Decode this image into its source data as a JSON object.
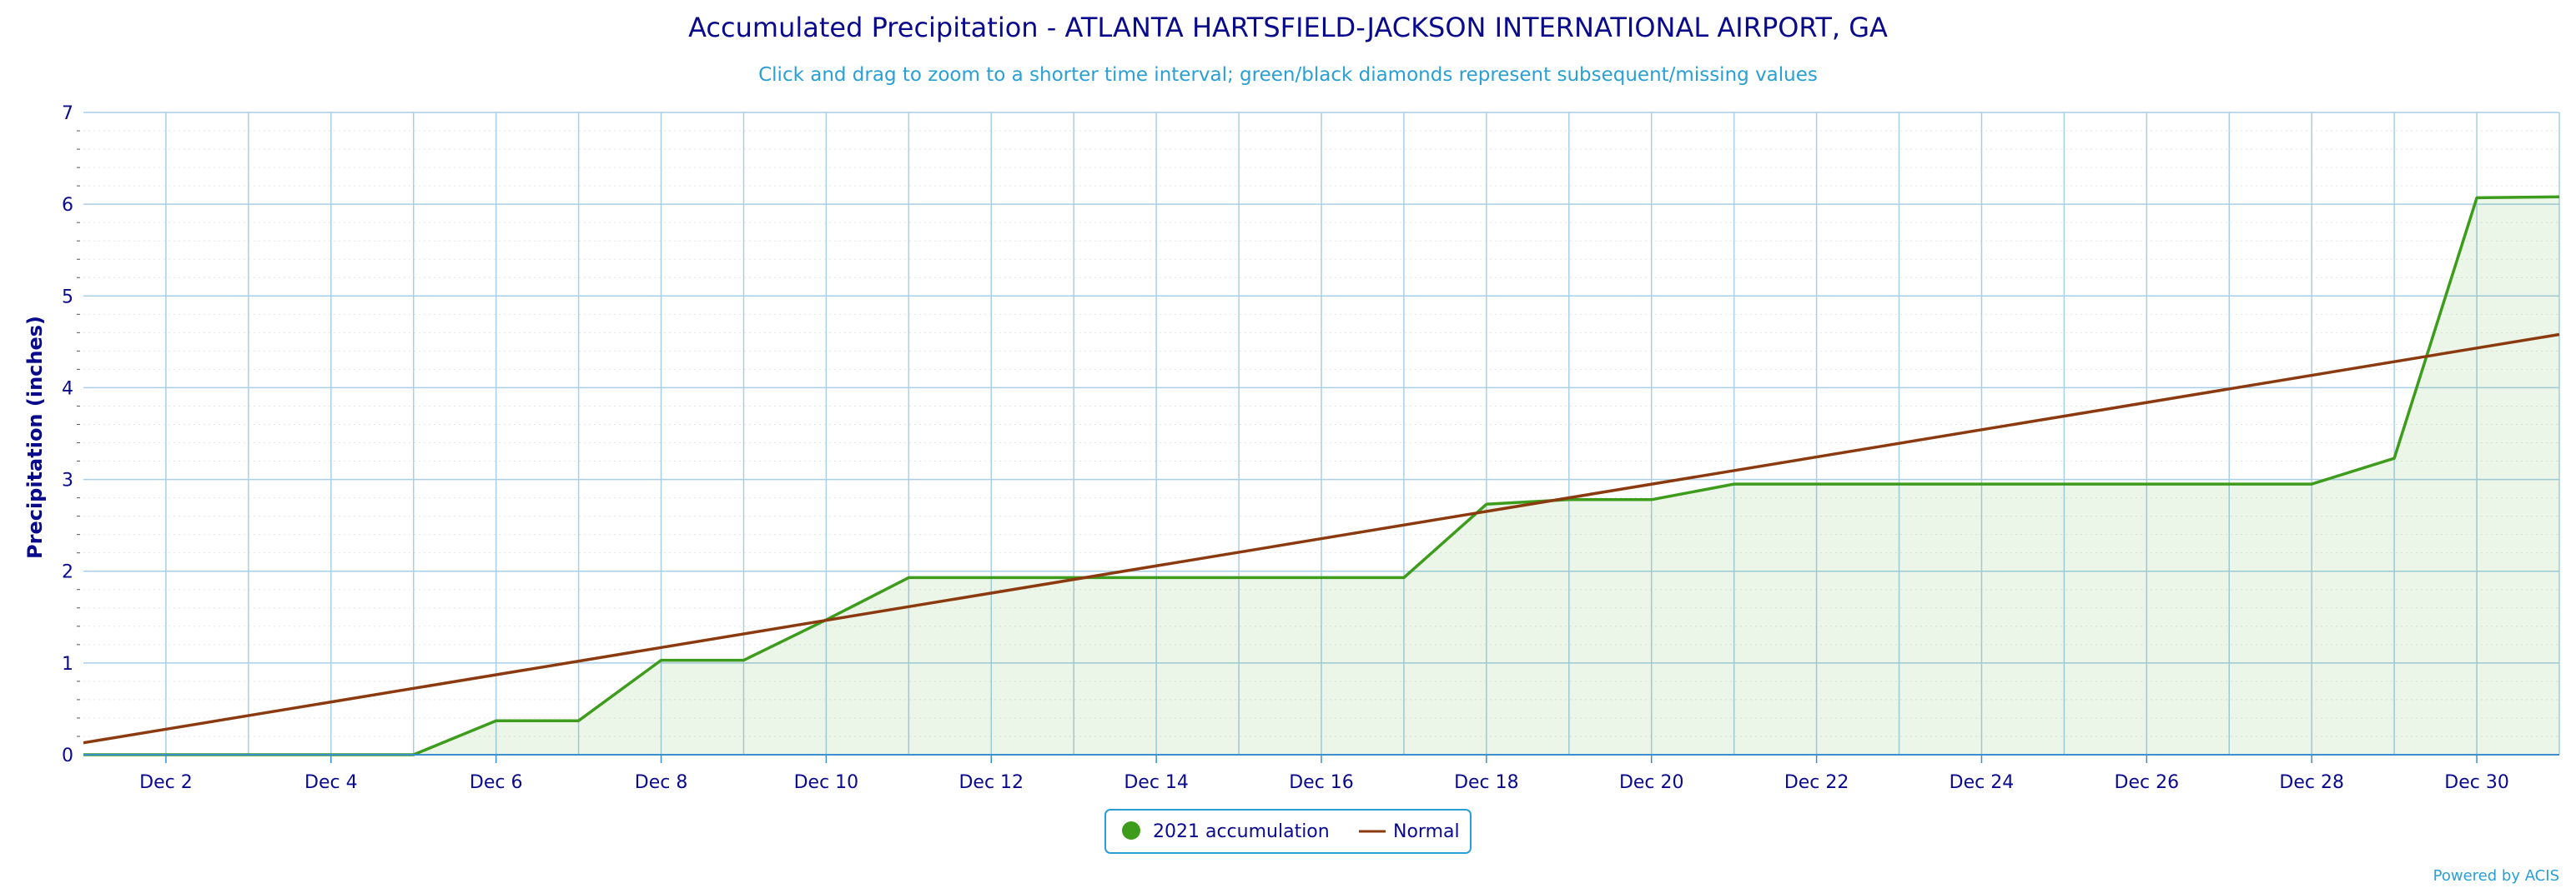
{
  "chart_data": {
    "type": "line",
    "title": "Accumulated Precipitation - ATLANTA HARTSFIELD-JACKSON INTERNATIONAL AIRPORT, GA",
    "subtitle": "Click and drag to zoom to a shorter time interval; green/black diamonds represent subsequent/missing values",
    "ylabel": "Precipitation (inches)",
    "xlabel": "",
    "ylim": [
      0,
      7
    ],
    "xlim": [
      1,
      31
    ],
    "yticks": [
      "0",
      "1",
      "2",
      "3",
      "4",
      "5",
      "6",
      "7"
    ],
    "xticks": [
      {
        "day": 2,
        "label": "Dec 2"
      },
      {
        "day": 4,
        "label": "Dec 4"
      },
      {
        "day": 6,
        "label": "Dec 6"
      },
      {
        "day": 8,
        "label": "Dec 8"
      },
      {
        "day": 10,
        "label": "Dec 10"
      },
      {
        "day": 12,
        "label": "Dec 12"
      },
      {
        "day": 14,
        "label": "Dec 14"
      },
      {
        "day": 16,
        "label": "Dec 16"
      },
      {
        "day": 18,
        "label": "Dec 18"
      },
      {
        "day": 20,
        "label": "Dec 20"
      },
      {
        "day": 22,
        "label": "Dec 22"
      },
      {
        "day": 24,
        "label": "Dec 24"
      },
      {
        "day": 26,
        "label": "Dec 26"
      },
      {
        "day": 28,
        "label": "Dec 28"
      },
      {
        "day": 30,
        "label": "Dec 30"
      }
    ],
    "grid": true,
    "legend_position": "bottom-center",
    "series": [
      {
        "name": "2021 accumulation",
        "color": "#3e9c1d",
        "fill": true,
        "x": [
          1,
          2,
          3,
          4,
          5,
          6,
          7,
          8,
          9,
          10,
          11,
          12,
          13,
          14,
          15,
          16,
          17,
          18,
          19,
          20,
          21,
          22,
          23,
          24,
          25,
          26,
          27,
          28,
          29,
          30,
          31
        ],
        "values": [
          0,
          0,
          0,
          0,
          0,
          0.37,
          0.37,
          1.03,
          1.03,
          1.47,
          1.93,
          1.93,
          1.93,
          1.93,
          1.93,
          1.93,
          1.93,
          2.73,
          2.78,
          2.78,
          2.95,
          2.95,
          2.95,
          2.95,
          2.95,
          2.95,
          2.95,
          2.95,
          3.23,
          6.07,
          6.08
        ]
      },
      {
        "name": "Normal",
        "color": "#8b3a0f",
        "fill": false,
        "x": [
          1,
          31
        ],
        "values": [
          0.13,
          4.58
        ]
      }
    ]
  },
  "credit": "Powered by ACIS"
}
